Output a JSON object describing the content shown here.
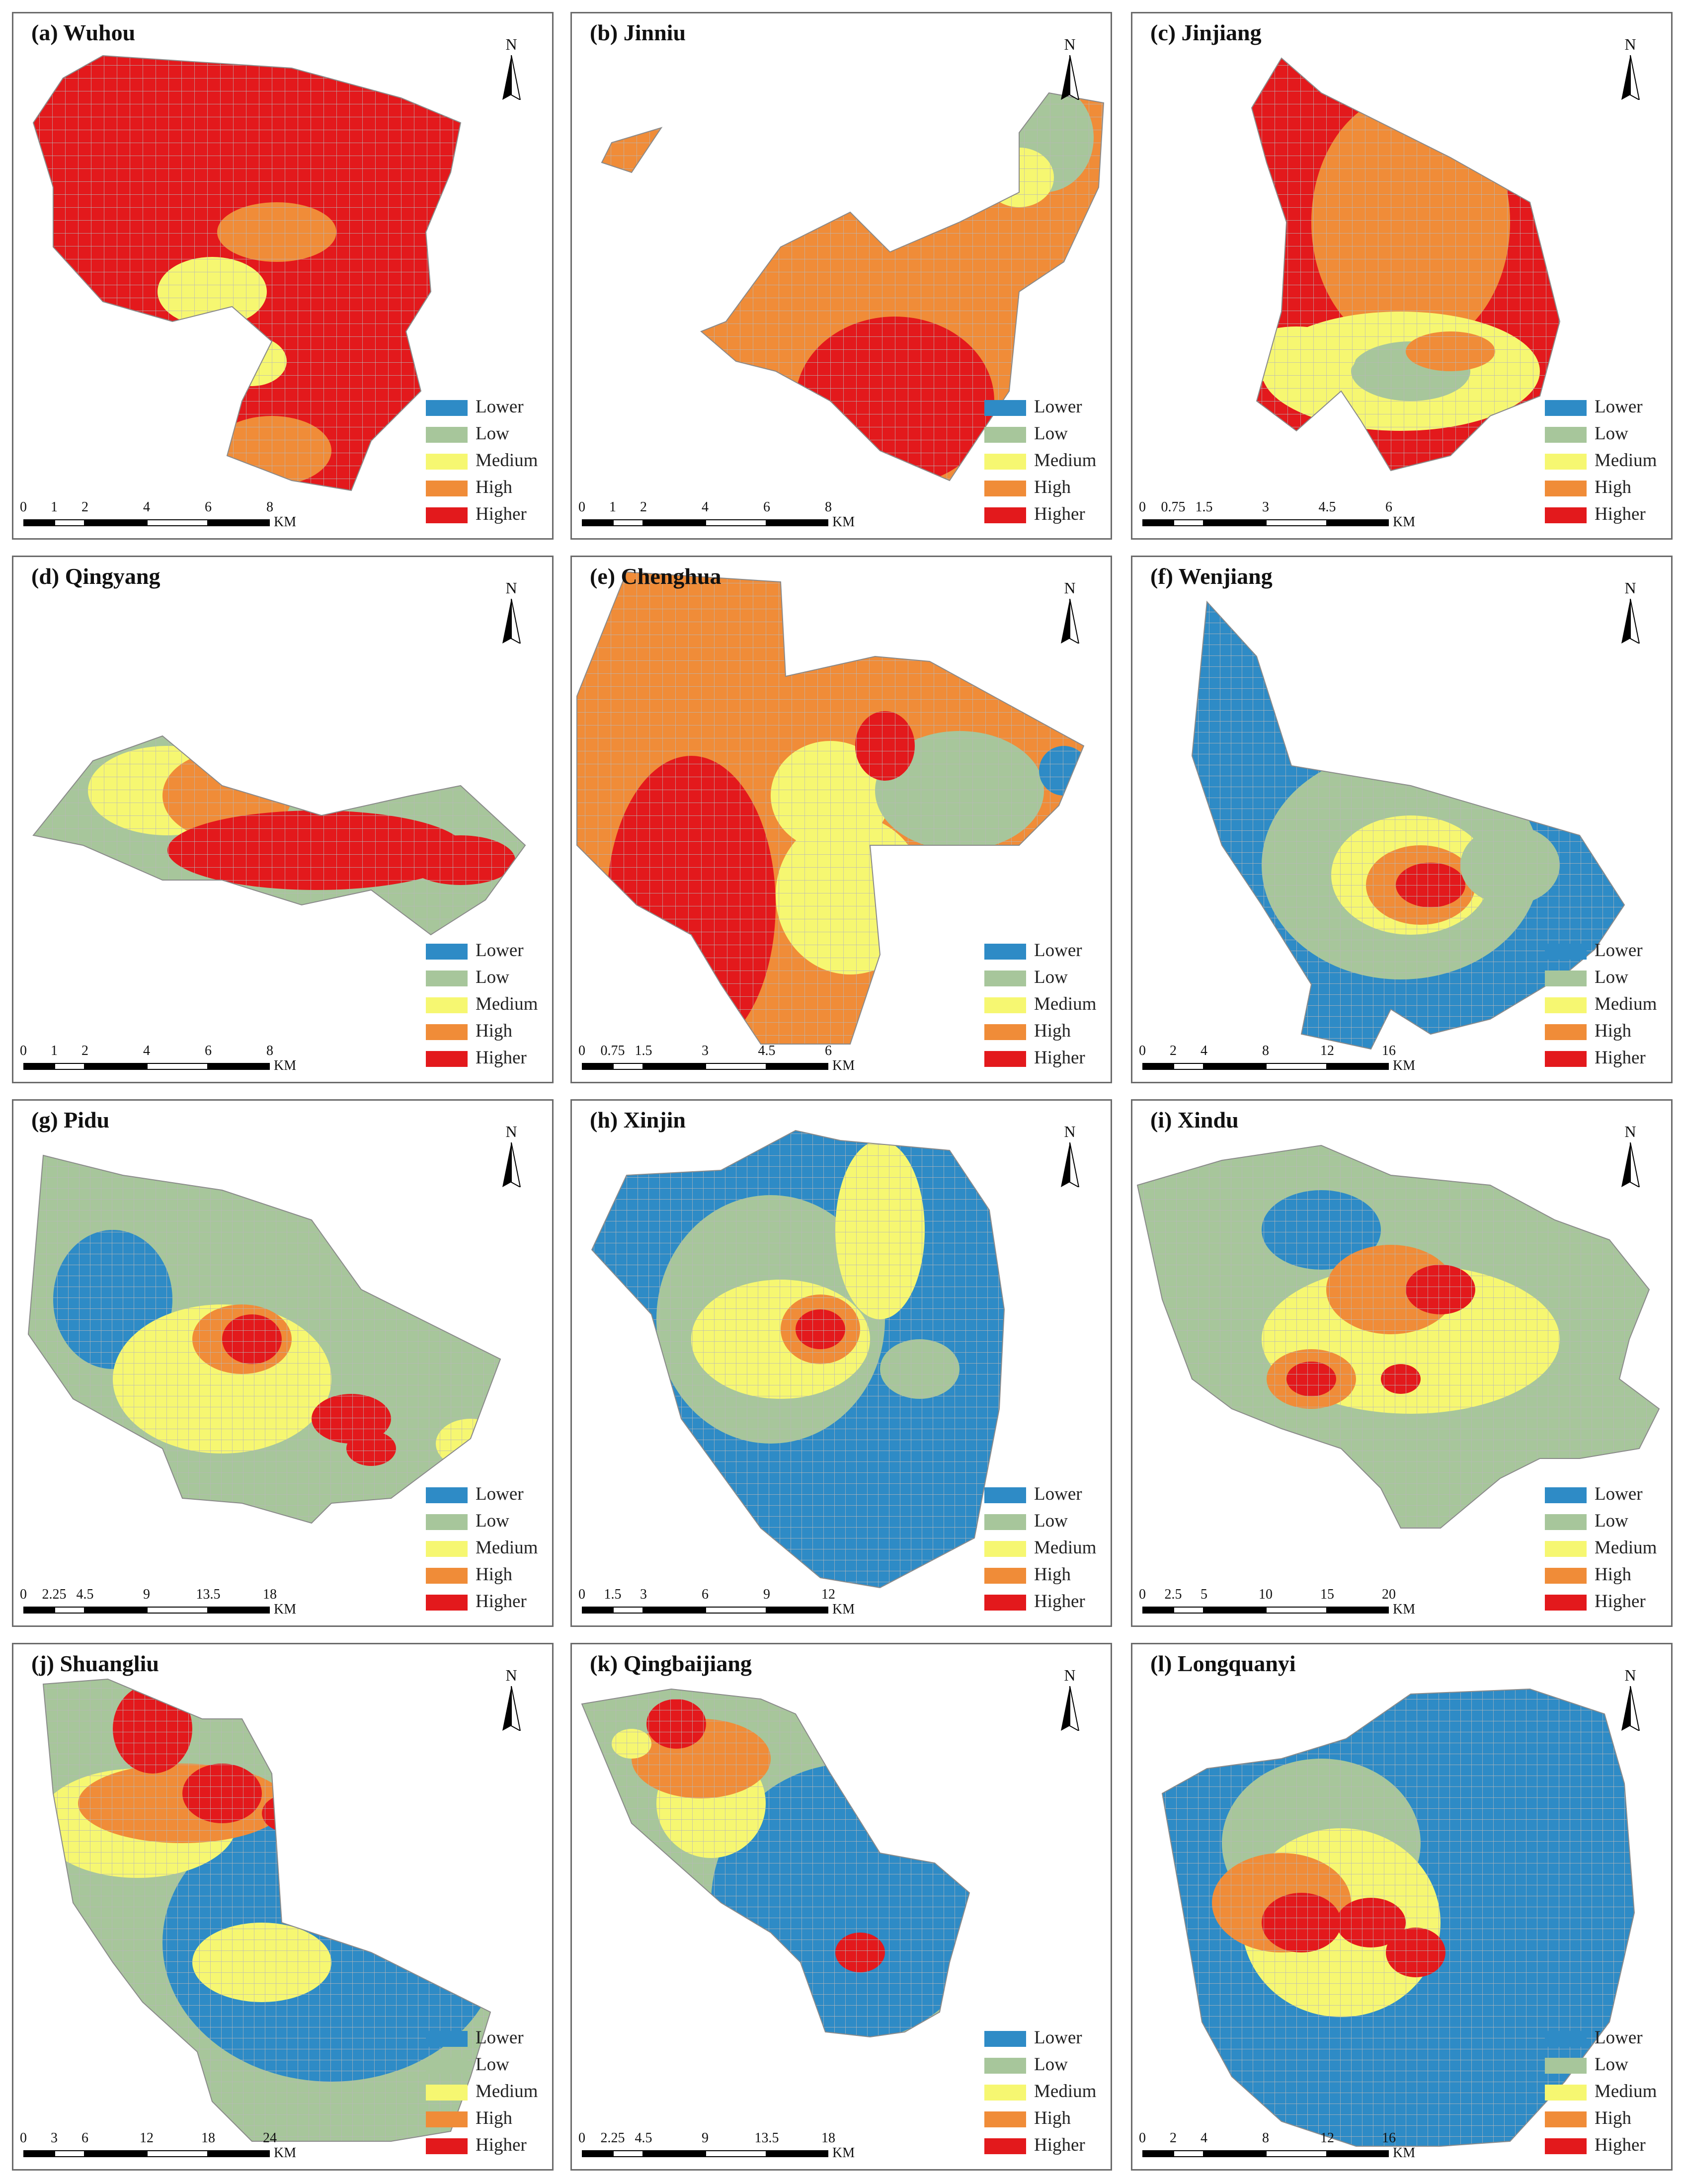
{
  "legend": {
    "classes": [
      {
        "key": "lower",
        "label": "Lower",
        "color": "#2e8bc6"
      },
      {
        "key": "low",
        "label": "Low",
        "color": "#a7c69b"
      },
      {
        "key": "medium",
        "label": "Medium",
        "color": "#f6f771"
      },
      {
        "key": "high",
        "label": "High",
        "color": "#f08c38"
      },
      {
        "key": "higher",
        "label": "Higher",
        "color": "#e3191c"
      }
    ]
  },
  "north_label": "N",
  "scale_unit": "KM",
  "colors": {
    "grid_line": "#b8b8b8",
    "panel_border": "#6b6b6b"
  },
  "panels": [
    {
      "title": "(a) Wuhou",
      "scale": [
        "0",
        "1",
        "2",
        "4",
        "6",
        "8"
      ],
      "blob_classes": [
        "higher",
        "higher",
        "high",
        "medium",
        "higher",
        "high",
        "medium"
      ]
    },
    {
      "title": "(b) Jinniu",
      "scale": [
        "0",
        "1",
        "2",
        "4",
        "6",
        "8"
      ],
      "blob_classes": [
        "high",
        "higher",
        "high",
        "low",
        "medium",
        "higher",
        "high"
      ]
    },
    {
      "title": "(c) Jinjiang",
      "scale": [
        "0",
        "0.75",
        "1.5",
        "3",
        "4.5",
        "6"
      ],
      "blob_classes": [
        "higher",
        "high",
        "medium",
        "low",
        "high",
        "medium"
      ]
    },
    {
      "title": "(d) Qingyang",
      "scale": [
        "0",
        "1",
        "2",
        "4",
        "6",
        "8"
      ],
      "blob_classes": [
        "low",
        "medium",
        "high",
        "higher",
        "higher"
      ]
    },
    {
      "title": "(e) Chenghua",
      "scale": [
        "0",
        "0.75",
        "1.5",
        "3",
        "4.5",
        "6"
      ],
      "blob_classes": [
        "high",
        "higher",
        "medium",
        "low",
        "higher",
        "medium",
        "lower"
      ]
    },
    {
      "title": "(f) Wenjiang",
      "scale": [
        "0",
        "2",
        "4",
        "8",
        "12",
        "16"
      ],
      "blob_classes": [
        "lower",
        "low",
        "medium",
        "high",
        "higher",
        "low"
      ]
    },
    {
      "title": "(g) Pidu",
      "scale": [
        "0",
        "2.25",
        "4.5",
        "9",
        "13.5",
        "18"
      ],
      "blob_classes": [
        "low",
        "lower",
        "medium",
        "high",
        "higher",
        "higher",
        "higher",
        "medium"
      ]
    },
    {
      "title": "(h) Xinjin",
      "scale": [
        "0",
        "1.5",
        "3",
        "6",
        "9",
        "12"
      ],
      "blob_classes": [
        "lower",
        "low",
        "medium",
        "medium",
        "high",
        "higher",
        "low"
      ]
    },
    {
      "title": "(i) Xindu",
      "scale": [
        "0",
        "2.5",
        "5",
        "10",
        "15",
        "20"
      ],
      "blob_classes": [
        "low",
        "lower",
        "medium",
        "high",
        "higher",
        "higher",
        "high",
        "higher"
      ]
    },
    {
      "title": "(j) Shuangliu",
      "scale": [
        "0",
        "3",
        "6",
        "12",
        "18",
        "24"
      ],
      "blob_classes": [
        "low",
        "lower",
        "medium",
        "high",
        "higher",
        "higher",
        "higher",
        "medium"
      ]
    },
    {
      "title": "(k) Qingbaijiang",
      "scale": [
        "0",
        "2.25",
        "4.5",
        "9",
        "13.5",
        "18"
      ],
      "blob_classes": [
        "low",
        "lower",
        "medium",
        "high",
        "higher",
        "higher",
        "medium"
      ]
    },
    {
      "title": "(l) Longquanyi",
      "scale": [
        "0",
        "2",
        "4",
        "8",
        "12",
        "16"
      ],
      "blob_classes": [
        "lower",
        "low",
        "medium",
        "high",
        "higher",
        "higher",
        "higher"
      ]
    }
  ]
}
